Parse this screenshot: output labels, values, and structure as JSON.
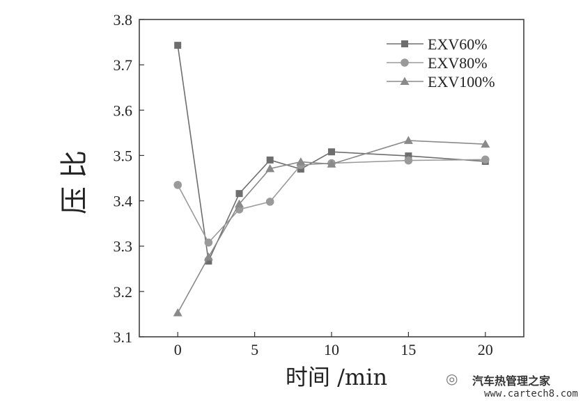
{
  "chart_data": {
    "type": "line",
    "xlabel": "时间 /min",
    "ylabel": "压比",
    "xlim": [
      -2.5,
      22.5
    ],
    "ylim": [
      3.1,
      3.8
    ],
    "xticks": [
      0,
      5,
      10,
      15,
      20
    ],
    "yticks": [
      3.1,
      3.2,
      3.3,
      3.4,
      3.5,
      3.6,
      3.7,
      3.8
    ],
    "grid": false,
    "legend_position": "top-right",
    "series": [
      {
        "name": "EXV60%",
        "marker": "square",
        "color": "#6e6e6e",
        "x": [
          0,
          2,
          4,
          6,
          8,
          10,
          15,
          20
        ],
        "y": [
          3.743,
          3.267,
          3.416,
          3.49,
          3.47,
          3.508,
          3.499,
          3.487
        ]
      },
      {
        "name": "EXV80%",
        "marker": "circle",
        "color": "#9a9a9a",
        "x": [
          0,
          2,
          4,
          6,
          8,
          10,
          15,
          20
        ],
        "y": [
          3.435,
          3.308,
          3.381,
          3.398,
          3.479,
          3.483,
          3.489,
          3.491
        ]
      },
      {
        "name": "EXV100%",
        "marker": "triangle",
        "color": "#8a8a8a",
        "x": [
          0,
          2,
          4,
          6,
          8,
          10,
          15,
          20
        ],
        "y": [
          3.153,
          3.276,
          3.393,
          3.471,
          3.486,
          3.481,
          3.533,
          3.525
        ]
      }
    ]
  },
  "watermark": {
    "line1": "汽车热管理之家",
    "line2": "www.cartech8.com"
  }
}
